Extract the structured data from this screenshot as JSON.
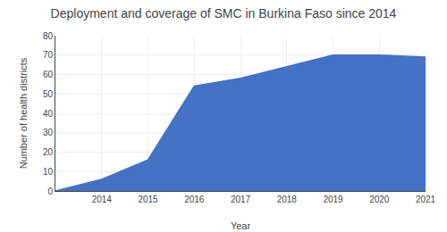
{
  "chart_data": {
    "type": "area",
    "title": "Deployment and coverage of SMC in Burkina Faso since 2014",
    "x_label": "Year",
    "y_label": "Number of health districts",
    "x": [
      2013,
      2014,
      2015,
      2016,
      2017,
      2018,
      2019,
      2020,
      2021
    ],
    "values": [
      0,
      6,
      16,
      54,
      58,
      64,
      70,
      70,
      69
    ],
    "color": "#4472C4",
    "xlim": [
      2013,
      2021
    ],
    "xticks": [
      2014,
      2015,
      2016,
      2017,
      2018,
      2019,
      2020,
      2021
    ],
    "ylim": [
      0,
      80
    ],
    "yticks": [
      0,
      10,
      20,
      30,
      40,
      50,
      60,
      70,
      80
    ],
    "grid": true
  }
}
